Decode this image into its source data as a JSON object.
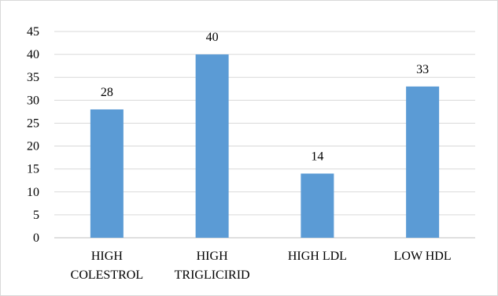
{
  "chart_data": {
    "type": "bar",
    "title": "",
    "xlabel": "",
    "ylabel": "",
    "categories": [
      [
        "HIGH",
        "COLESTROL"
      ],
      [
        "HIGH",
        "TRIGLICIRID"
      ],
      [
        "HIGH LDL"
      ],
      [
        "LOW HDL"
      ]
    ],
    "values": [
      28,
      40,
      14,
      33
    ],
    "data_labels": [
      "28",
      "40",
      "14",
      "33"
    ],
    "ylim": [
      0,
      45
    ],
    "yticks": [
      "0",
      "5",
      "10",
      "15",
      "20",
      "25",
      "30",
      "35",
      "40",
      "45"
    ],
    "grid": "horizontal",
    "legend": "none",
    "colors": {
      "bar": "#5b9bd5",
      "grid": "#d9d9d9",
      "axis": "#bfbfbf"
    }
  }
}
